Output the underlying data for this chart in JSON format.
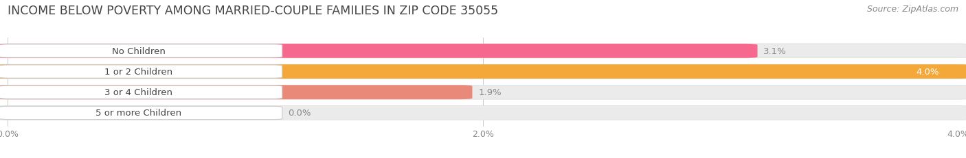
{
  "title": "INCOME BELOW POVERTY AMONG MARRIED-COUPLE FAMILIES IN ZIP CODE 35055",
  "source": "Source: ZipAtlas.com",
  "categories": [
    "No Children",
    "1 or 2 Children",
    "3 or 4 Children",
    "5 or more Children"
  ],
  "values": [
    3.1,
    4.0,
    1.9,
    0.0
  ],
  "bar_colors": [
    "#f7688e",
    "#f5a83a",
    "#e8897a",
    "#a8c4e8"
  ],
  "xlim": [
    0,
    4.0
  ],
  "xtick_labels": [
    "0.0%",
    "2.0%",
    "4.0%"
  ],
  "xtick_vals": [
    0.0,
    2.0,
    4.0
  ],
  "background_color": "#ffffff",
  "bar_bg_color": "#ebebeb",
  "title_fontsize": 12.5,
  "source_fontsize": 9,
  "label_fontsize": 9.5,
  "value_fontsize": 9.5,
  "bar_height": 0.58
}
